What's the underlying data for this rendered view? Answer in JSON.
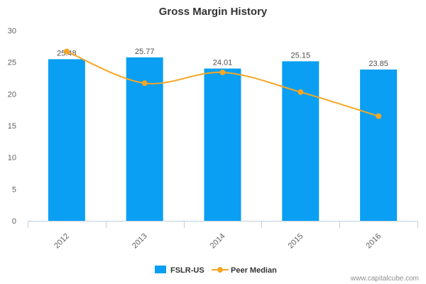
{
  "chart_data": {
    "type": "bar",
    "title": "Gross Margin History",
    "categories": [
      "2012",
      "2013",
      "2014",
      "2015",
      "2016"
    ],
    "series": [
      {
        "name": "FSLR-US",
        "type": "bar",
        "values": [
          25.48,
          25.77,
          24.01,
          25.15,
          23.85
        ],
        "value_labels": [
          "25.48",
          "25.77",
          "24.01",
          "25.15",
          "23.85"
        ],
        "color": "#0a9ff2"
      },
      {
        "name": "Peer Median",
        "type": "line",
        "smooth": true,
        "values": [
          26.7,
          21.7,
          23.4,
          20.3,
          16.5
        ],
        "color": "#f6a623"
      }
    ],
    "ylim": [
      0,
      30
    ],
    "yticks": [
      0,
      5,
      10,
      15,
      20,
      25,
      30
    ],
    "xlabel": "",
    "ylabel": "",
    "grid": false,
    "legend": "bottom-center"
  },
  "credit": "www.capitalcube.com"
}
